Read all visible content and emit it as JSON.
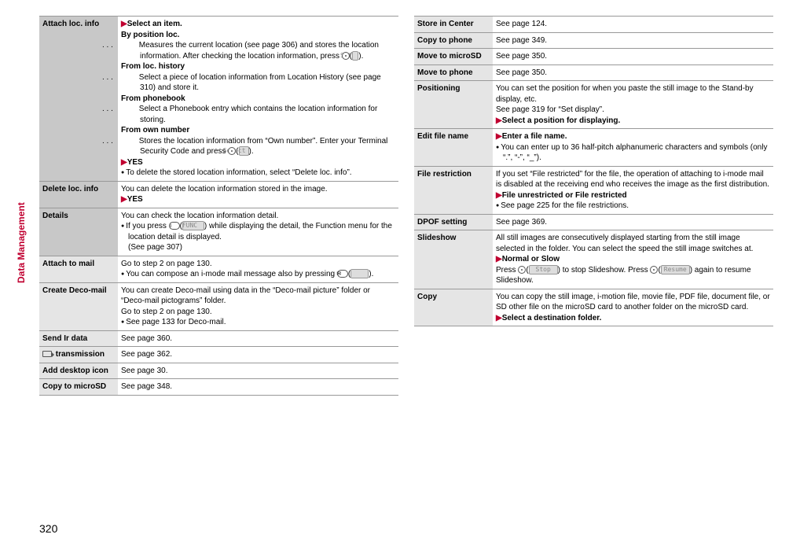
{
  "side_tab": "Data Management",
  "page_number": "320",
  "left": [
    {
      "shade": "dark",
      "label": "Attach loc. info",
      "body_html": "<span class='arrow'>▶</span><b>Select an item.</b><br><b>By position loc.</b><br><div class='indent-hang'><span class='dots'>. . .</span> Measures the current location (see page 306) and stores the location information. After checking the location information, press <span class='btn-circle'></span>(<span class='btn-soft'>&nbsp;Set&nbsp;</span>).</div><b>From loc. history</b><br><div class='indent-hang'><span class='dots'>. . .</span> Select a piece of location information from Location History (see page 310) and store it.</div><b>From phonebook</b><br><div class='indent-hang'><span class='dots'>. . .</span> Select a Phonebook entry which contains the location information for storing.</div><b>From own number</b><br><div class='indent-hang'><span class='dots'>. . .</span> Stores the location information from “Own number”. Enter your Terminal Security Code and press <span class='btn-circle'></span>(<span class='btn-soft'>Select</span>).</div><span class='arrow'>▶</span><b>YES</b><ul class='bul'><li>To delete the stored location information, select “Delete loc. info”.</li></ul>"
    },
    {
      "shade": "dark",
      "label": "Delete loc. info",
      "body_html": "You can delete the location information stored in the image.<br><span class='arrow'>▶</span><b>YES</b>"
    },
    {
      "shade": "dark",
      "label": "Details",
      "body_html": "You can check the location information detail.<ul class='bul'><li>If you press <span class='btn-key'>i</span>(<span class='btn-soft'>&nbsp;FUNC&nbsp;</span>) while displaying the detail, the Function menu for the location detail is displayed.<br>(See page 307)</li></ul>"
    },
    {
      "shade": "light",
      "label": "Attach to mail",
      "body_html": "Go to step 2 on page 130.<ul class='bul'><li>You can compose an i-mode mail message also by pressing <span class='btn-key'>✉</span>(<span class='btn-soft'>&nbsp;&nbsp;&nbsp;&nbsp;&nbsp;</span>).</li></ul>"
    },
    {
      "shade": "light",
      "label": "Create Deco-mail",
      "body_html": "You can create Deco-mail using data in the “Deco-mail picture” folder or “Deco-mail pictograms” folder.<br>Go to step 2 on page 130.<ul class='bul'><li>See page 133 for Deco-mail.</li></ul>"
    },
    {
      "shade": "light",
      "label": "Send Ir data",
      "body_html": "See page 360."
    },
    {
      "shade": "light",
      "label_html": "<span class='ir-icon'></span> transmission",
      "body_html": "See page 362."
    },
    {
      "shade": "light",
      "label": "Add desktop icon",
      "body_html": "See page 30."
    },
    {
      "shade": "light",
      "label": "Copy to microSD",
      "body_html": "See page 348."
    }
  ],
  "right": [
    {
      "shade": "light",
      "label": "Store in Center",
      "body_html": "See page 124."
    },
    {
      "shade": "light",
      "label": "Copy to phone",
      "body_html": "See page 349."
    },
    {
      "shade": "light",
      "label": "Move to microSD",
      "body_html": "See page 350."
    },
    {
      "shade": "light",
      "label": "Move to phone",
      "body_html": "See page 350."
    },
    {
      "shade": "light",
      "label": "Positioning",
      "body_html": "You can set the position for when you paste the still image to the Stand-by display, etc.<br>See page 319 for “Set display”.<br><span class='arrow'>▶</span><b>Select a position for displaying.</b>"
    },
    {
      "shade": "light",
      "label": "Edit file name",
      "body_html": "<span class='arrow'>▶</span><b>Enter a file name.</b><ul class='bul'><li>You can enter up to 36 half-pitch alphanumeric characters and symbols (only “.”, “-”, “_”).</li></ul>"
    },
    {
      "shade": "light",
      "label": "File restriction",
      "body_html": "If you set “File restricted” for the file, the operation of attaching to i-mode mail is disabled at the receiving end who receives the image as the first distribution.<br><span class='arrow'>▶</span><b>File unrestricted or File restricted</b><ul class='bul'><li>See page 225 for the file restrictions.</li></ul>"
    },
    {
      "shade": "light",
      "label": "DPOF setting",
      "body_html": "See page 369."
    },
    {
      "shade": "light",
      "label": "Slideshow",
      "body_html": "All still images are consecutively displayed starting from the still image selected in the folder. You can select the speed the still image switches at.<br><span class='arrow'>▶</span><b>Normal or Slow</b><br>Press <span class='btn-circle'></span>(<span class='btn-soft'>&nbsp;Stop&nbsp;</span>) to stop Slideshow. Press <span class='btn-circle'></span>(<span class='btn-soft'>Resume</span>) again to resume Slideshow."
    },
    {
      "shade": "light",
      "label": "Copy",
      "body_html": "You can copy the still image, i-motion file, movie file, PDF file, document file, or SD other file on the microSD card to another folder on the microSD card.<br><span class='arrow'>▶</span><b>Select a destination folder.</b>"
    }
  ]
}
